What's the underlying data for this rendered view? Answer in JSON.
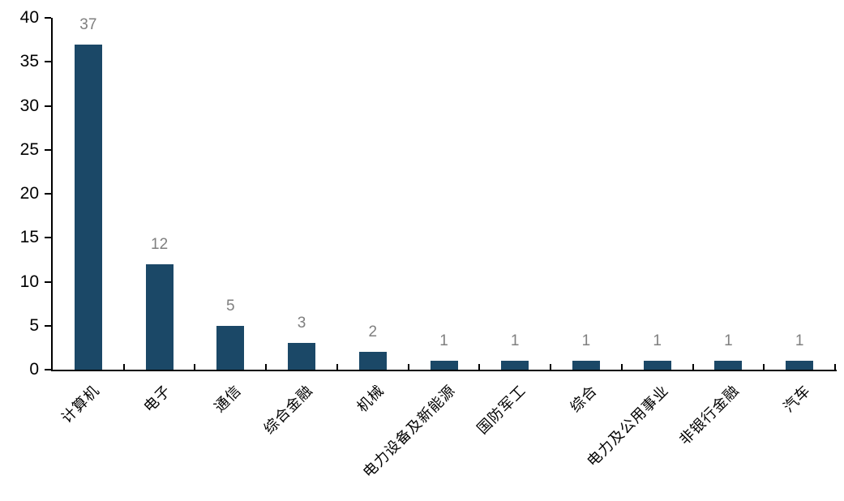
{
  "chart_data": {
    "type": "bar",
    "title": "",
    "xlabel": "",
    "ylabel": "",
    "categories": [
      "计算机",
      "电子",
      "通信",
      "综合金融",
      "机械",
      "电力设备及新能源",
      "国防军工",
      "综合",
      "电力及公用事业",
      "非银行金融",
      "汽车"
    ],
    "values": [
      37,
      12,
      5,
      3,
      2,
      1,
      1,
      1,
      1,
      1,
      1
    ],
    "ylim": [
      0,
      40
    ],
    "yticks": [
      0,
      5,
      10,
      15,
      20,
      25,
      30,
      35,
      40
    ],
    "grid": false,
    "legend": "none",
    "data_labels_shown": true,
    "x_labels_rotation_deg": -45,
    "colors": {
      "bar": "#1B4867",
      "value_label": "#7F7F7F",
      "axis": "#000000",
      "tick_label": "#000000",
      "background": "#FFFFFF"
    }
  }
}
